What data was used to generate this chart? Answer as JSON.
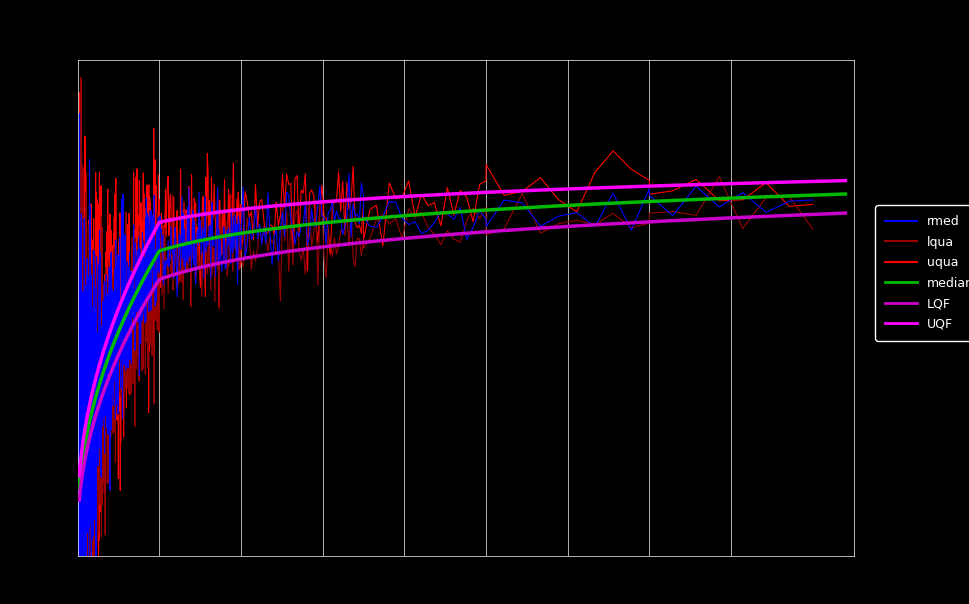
{
  "background_color": "#000000",
  "plot_bg_color": "#000000",
  "grid_color": "#ffffff",
  "text_color": "#ffffff",
  "legend_bg": "#000000",
  "legend_text_color": "#ffffff",
  "series": {
    "rmed": {
      "color": "#0000ff",
      "lw": 0.8
    },
    "lqua": {
      "color": "#990000",
      "lw": 0.8
    },
    "uqua": {
      "color": "#ff0000",
      "lw": 0.8
    },
    "median": {
      "color": "#00bb00",
      "lw": 2.5
    },
    "LQF": {
      "color": "#cc00cc",
      "lw": 2.5
    },
    "UQF": {
      "color": "#ff00ff",
      "lw": 2.5
    }
  },
  "xlim": [
    0,
    950
  ],
  "ylim": [
    -1.05,
    1.55
  ],
  "x_ticks": [
    100,
    200,
    300,
    400,
    500,
    600,
    700,
    800
  ],
  "y_ticks": []
}
